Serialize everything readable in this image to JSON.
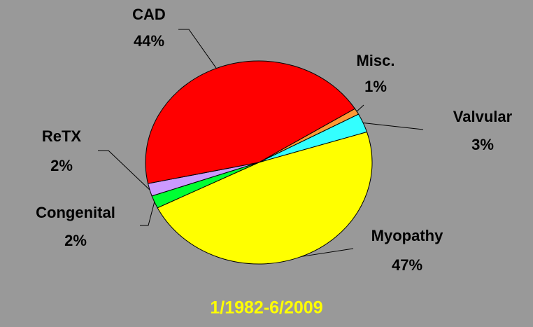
{
  "chart_data": {
    "type": "pie",
    "categories": [
      "Misc.",
      "Valvular",
      "Myopathy",
      "Congenital",
      "ReTX",
      "CAD"
    ],
    "values": [
      1,
      3,
      47,
      2,
      2,
      44
    ],
    "value_labels": [
      "1%",
      "3%",
      "47%",
      "2%",
      "2%",
      "44%"
    ],
    "colors": [
      "#ff9933",
      "#33ffff",
      "#ffff00",
      "#00ff33",
      "#cc99ff",
      "#ff0000"
    ],
    "subtitle": "1/1982-6/2009"
  }
}
